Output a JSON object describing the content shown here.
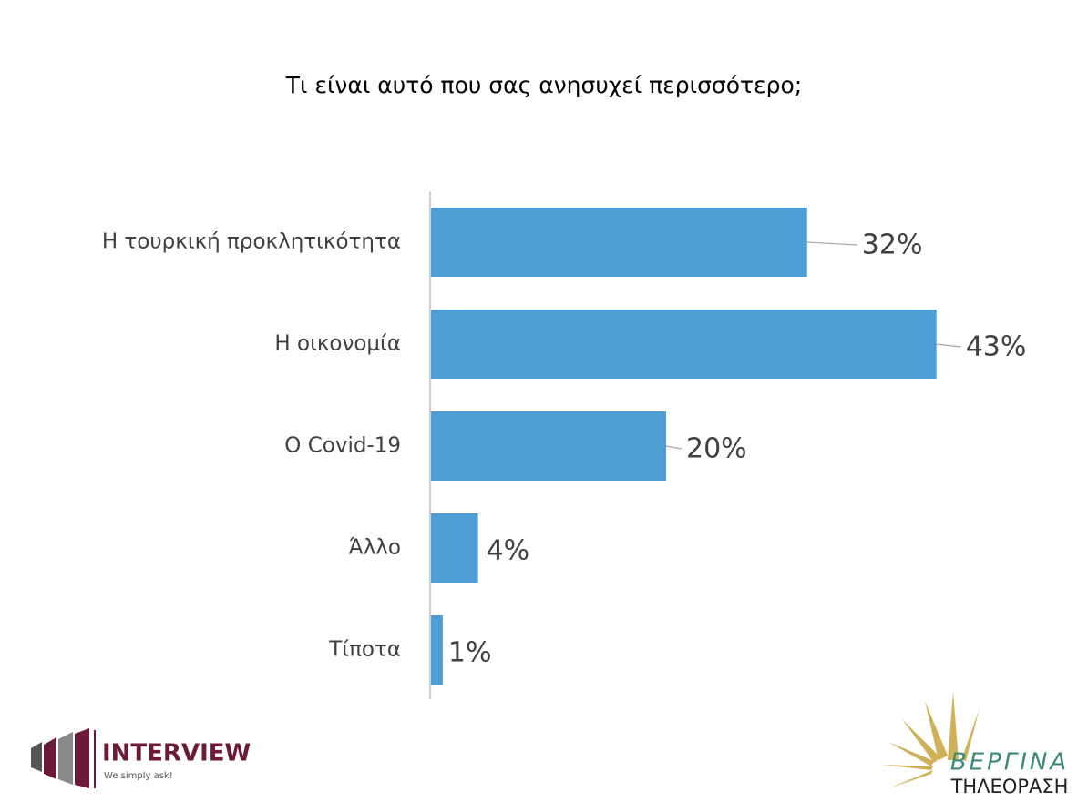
{
  "chart_data": {
    "type": "hbar",
    "title": "Τι είναι αυτό που σας ανησυχεί περισσότερο;",
    "categories": [
      "Η τουρκική προκλητικότητα",
      "Η οικονομία",
      "Ο Covid-19",
      "Άλλο",
      "Τίποτα"
    ],
    "values": [
      32,
      43,
      20,
      4,
      1
    ],
    "value_labels": [
      "32%",
      "43%",
      "20%",
      "4%",
      "1%"
    ],
    "color": "#4e9dd5"
  },
  "logos": {
    "interview": {
      "name": "INTERVIEW",
      "tagline": "We simply ask!"
    },
    "vergina": {
      "name": "ΒΕΡΓΙΝΑ",
      "subtitle": "ΤΗΛΕΟΡΑΣΗ"
    }
  }
}
